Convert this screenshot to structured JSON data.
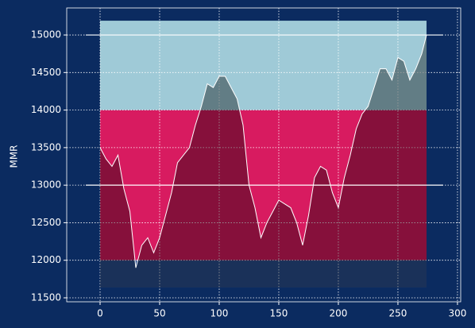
{
  "chart_data": {
    "type": "line",
    "ylabel": "MMR",
    "x": [
      0,
      5,
      10,
      15,
      20,
      25,
      30,
      35,
      40,
      45,
      50,
      55,
      60,
      65,
      70,
      75,
      80,
      85,
      90,
      95,
      100,
      105,
      110,
      115,
      120,
      125,
      130,
      135,
      140,
      145,
      150,
      155,
      160,
      165,
      170,
      175,
      180,
      185,
      190,
      195,
      200,
      205,
      210,
      215,
      220,
      225,
      230,
      235,
      240,
      245,
      250,
      255,
      260,
      265,
      270,
      274
    ],
    "series": [
      {
        "color": "#ffffff",
        "values": [
          13500,
          13350,
          13250,
          13400,
          12950,
          12650,
          11900,
          12200,
          12300,
          12100,
          12300,
          12600,
          12900,
          13300,
          13400,
          13500,
          13800,
          14050,
          14350,
          14300,
          14450,
          14450,
          14300,
          14150,
          13800,
          13000,
          12700,
          12300,
          12500,
          12650,
          12800,
          12750,
          12700,
          12500,
          12200,
          12600,
          13100,
          13250,
          13200,
          12900,
          12700,
          13100,
          13400,
          13750,
          13950,
          14050,
          14300,
          14550,
          14550,
          14400,
          14700,
          14650,
          14400,
          14550,
          14750,
          15000
        ]
      }
    ],
    "bands": [
      {
        "from": 14000,
        "to": 15190,
        "xmin": 0,
        "xmax": 274,
        "color": "#9fcad7"
      },
      {
        "from": 12000,
        "to": 14000,
        "xmin": 0,
        "xmax": 274,
        "color": "#d81b60"
      },
      {
        "from": 11637,
        "to": 12000,
        "xmin": 0,
        "xmax": 274,
        "color": "#2a5090"
      }
    ],
    "hlines": [
      {
        "value": 15000,
        "xmin": -12,
        "xmax": 288
      },
      {
        "value": 13000,
        "xmin": -12,
        "xmax": 288
      }
    ],
    "xlim": [
      -28,
      302.7
    ],
    "ylim": [
      11447,
      15360
    ],
    "xticks": [
      0,
      50,
      100,
      150,
      200,
      250,
      300
    ],
    "yticks": [
      11500,
      12000,
      12500,
      13000,
      13500,
      14000,
      14500,
      15000
    ],
    "grid": true
  }
}
